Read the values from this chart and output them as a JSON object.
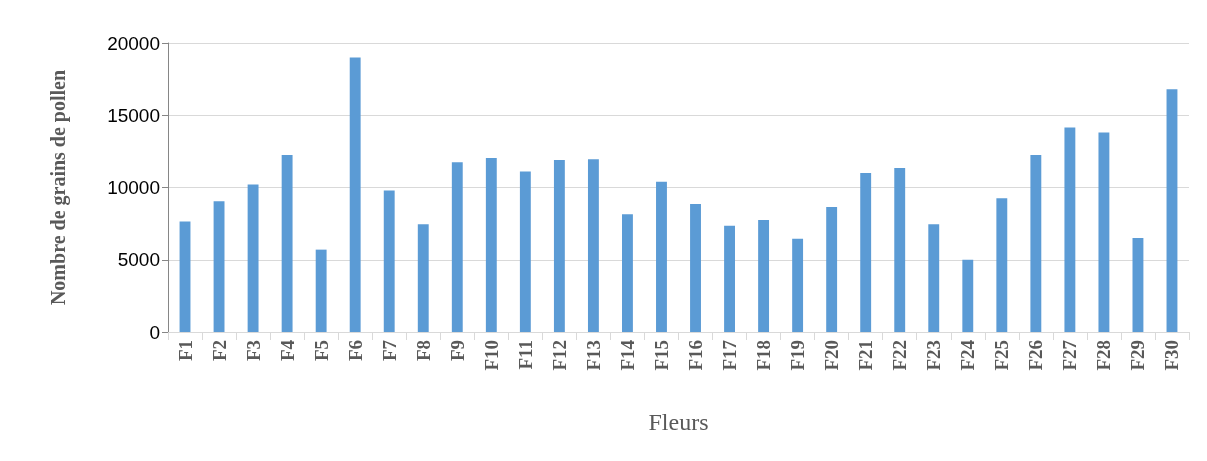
{
  "chart_data": {
    "type": "bar",
    "xlabel": "Fleurs",
    "ylabel": "Nombre de grains de pollen",
    "categories": [
      "F1",
      "F2",
      "F3",
      "F4",
      "F5",
      "F6",
      "F7",
      "F8",
      "F9",
      "F10",
      "F11",
      "F12",
      "F13",
      "F14",
      "F15",
      "F16",
      "F17",
      "F18",
      "F19",
      "F20",
      "F21",
      "F22",
      "F23",
      "F24",
      "F25",
      "F26",
      "F27",
      "F28",
      "F29",
      "F30"
    ],
    "values": [
      7650,
      9050,
      10200,
      12250,
      5700,
      19000,
      9800,
      7450,
      11750,
      12050,
      11100,
      11900,
      11950,
      8150,
      10400,
      8850,
      7350,
      7750,
      6450,
      8650,
      11000,
      11350,
      7450,
      5000,
      9250,
      12250,
      14150,
      13800,
      6500,
      16800
    ],
    "color": "#5b9bd5",
    "ylim": [
      0,
      20000
    ],
    "yticks": [
      0,
      5000,
      10000,
      15000,
      20000
    ],
    "grid": "y"
  }
}
